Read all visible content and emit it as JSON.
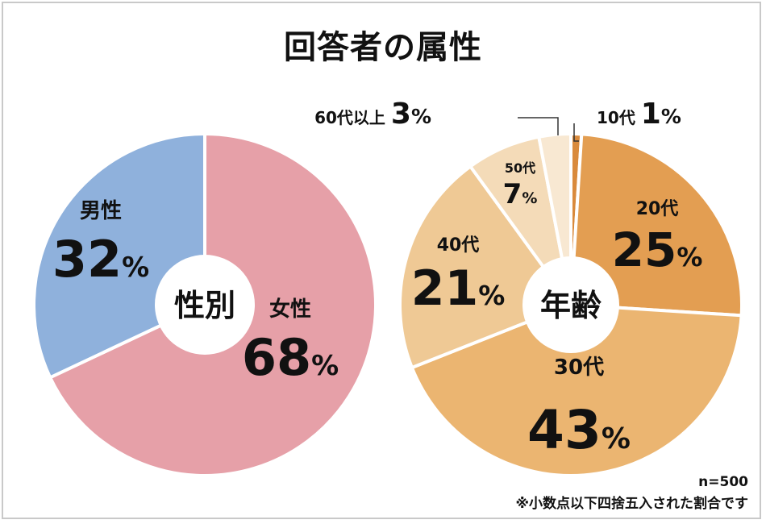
{
  "title": "回答者の属性",
  "notes": {
    "sample": "n=500",
    "rounding": "※小数点以下四捨五入された割合です"
  },
  "chart_data": [
    {
      "type": "pie",
      "center_label": "性別",
      "slices": [
        {
          "label": "女性",
          "value": 68,
          "color": "#e6a0a8"
        },
        {
          "label": "男性",
          "value": 32,
          "color": "#8fb1dc"
        }
      ],
      "unit": "%"
    },
    {
      "type": "pie",
      "center_label": "年齢",
      "slices": [
        {
          "label": "10代",
          "value": 1,
          "color": "#d98a3c"
        },
        {
          "label": "20代",
          "value": 25,
          "color": "#e39e52"
        },
        {
          "label": "30代",
          "value": 43,
          "color": "#ebb571"
        },
        {
          "label": "40代",
          "value": 21,
          "color": "#efc995"
        },
        {
          "label": "50代",
          "value": 7,
          "color": "#f4dbb8"
        },
        {
          "label": "60代以上",
          "value": 3,
          "color": "#f8e8d2"
        }
      ],
      "unit": "%"
    }
  ]
}
